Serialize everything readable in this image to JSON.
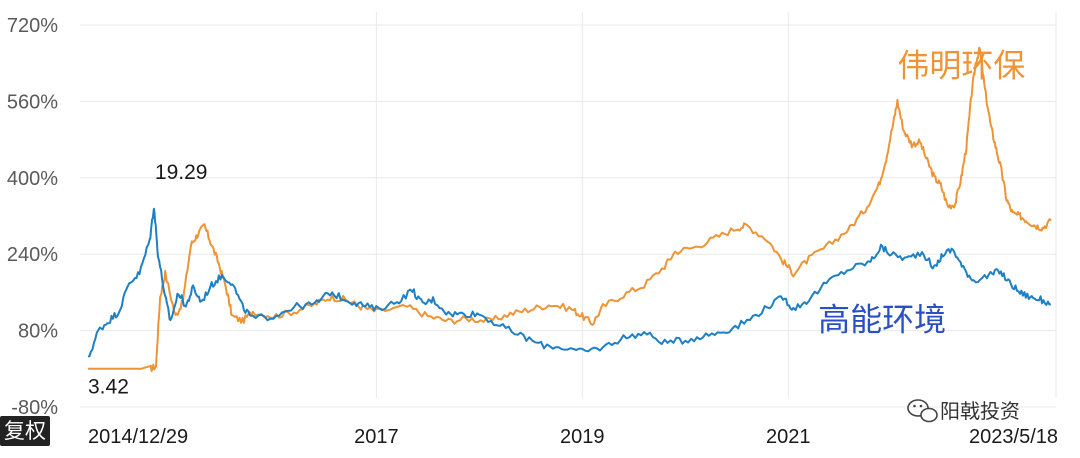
{
  "colors": {
    "weiming": "#ee9435",
    "gaoneng": "#1e80c4",
    "gaoneng_label": "#2a4fc4",
    "grid": "#e8e8e8"
  },
  "corner_label": "复权",
  "watermark_text": "阳戟投资",
  "chart_data": {
    "type": "line",
    "title": "",
    "xlabel": "",
    "ylabel": "",
    "ylim": [
      -80,
      720
    ],
    "xlim": [
      2014.2,
      2023.6
    ],
    "y_ticks": [
      {
        "value": 720,
        "label": "720%"
      },
      {
        "value": 560,
        "label": "560%"
      },
      {
        "value": 400,
        "label": "400%"
      },
      {
        "value": 240,
        "label": "240%"
      },
      {
        "value": 80,
        "label": "80%"
      },
      {
        "value": -80,
        "label": "-80%"
      }
    ],
    "x_ticks": [
      {
        "value": 2014.99,
        "label": "2014/12/29",
        "grid": false
      },
      {
        "value": 2017.0,
        "label": "2017",
        "grid": true
      },
      {
        "value": 2019.0,
        "label": "2019",
        "grid": true
      },
      {
        "value": 2021.0,
        "label": "2021",
        "grid": true
      },
      {
        "value": 2023.38,
        "label": "2023/5/18",
        "grid": false
      }
    ],
    "annotations": [
      {
        "text": "19.29",
        "x": 2014.85,
        "y": 397
      },
      {
        "text": "3.42",
        "x": 2014.2,
        "y": -52
      }
    ],
    "series": [
      {
        "name": "伟明环保",
        "color_key": "weiming",
        "points": [
          [
            2014.2,
            0
          ],
          [
            2014.8,
            0
          ],
          [
            2014.86,
            5
          ],
          [
            2014.9,
            150
          ],
          [
            2014.95,
            200
          ],
          [
            2015.05,
            110
          ],
          [
            2015.12,
            140
          ],
          [
            2015.2,
            260
          ],
          [
            2015.26,
            280
          ],
          [
            2015.33,
            300
          ],
          [
            2015.4,
            260
          ],
          [
            2015.47,
            220
          ],
          [
            2015.54,
            170
          ],
          [
            2015.6,
            110
          ],
          [
            2015.7,
            100
          ],
          [
            2015.8,
            120
          ],
          [
            2016.0,
            110
          ],
          [
            2016.2,
            120
          ],
          [
            2016.4,
            135
          ],
          [
            2016.55,
            150
          ],
          [
            2016.7,
            145
          ],
          [
            2016.85,
            130
          ],
          [
            2017.0,
            120
          ],
          [
            2017.3,
            130
          ],
          [
            2017.5,
            110
          ],
          [
            2017.7,
            100
          ],
          [
            2017.9,
            105
          ],
          [
            2018.1,
            100
          ],
          [
            2018.3,
            115
          ],
          [
            2018.5,
            125
          ],
          [
            2018.7,
            135
          ],
          [
            2018.9,
            125
          ],
          [
            2019.0,
            110
          ],
          [
            2019.1,
            95
          ],
          [
            2019.2,
            130
          ],
          [
            2019.4,
            155
          ],
          [
            2019.6,
            175
          ],
          [
            2019.8,
            215
          ],
          [
            2019.9,
            245
          ],
          [
            2020.1,
            255
          ],
          [
            2020.3,
            275
          ],
          [
            2020.5,
            295
          ],
          [
            2020.6,
            300
          ],
          [
            2020.8,
            270
          ],
          [
            2020.95,
            225
          ],
          [
            2021.05,
            200
          ],
          [
            2021.2,
            230
          ],
          [
            2021.4,
            260
          ],
          [
            2021.6,
            295
          ],
          [
            2021.75,
            335
          ],
          [
            2021.88,
            385
          ],
          [
            2021.95,
            440
          ],
          [
            2022.02,
            515
          ],
          [
            2022.06,
            560
          ],
          [
            2022.12,
            500
          ],
          [
            2022.2,
            470
          ],
          [
            2022.28,
            475
          ],
          [
            2022.35,
            435
          ],
          [
            2022.42,
            400
          ],
          [
            2022.48,
            385
          ],
          [
            2022.55,
            340
          ],
          [
            2022.62,
            345
          ],
          [
            2022.68,
            400
          ],
          [
            2022.73,
            465
          ],
          [
            2022.78,
            575
          ],
          [
            2022.82,
            640
          ],
          [
            2022.86,
            670
          ],
          [
            2022.91,
            585
          ],
          [
            2022.97,
            505
          ],
          [
            2023.02,
            460
          ],
          [
            2023.07,
            415
          ],
          [
            2023.12,
            355
          ],
          [
            2023.18,
            325
          ],
          [
            2023.25,
            320
          ],
          [
            2023.32,
            310
          ],
          [
            2023.4,
            300
          ],
          [
            2023.47,
            295
          ],
          [
            2023.55,
            310
          ]
        ]
      },
      {
        "name": "高能环境",
        "color_key": "gaoneng",
        "label_color_key": "gaoneng_label",
        "points": [
          [
            2014.2,
            20
          ],
          [
            2014.3,
            80
          ],
          [
            2014.4,
            100
          ],
          [
            2014.5,
            120
          ],
          [
            2014.6,
            180
          ],
          [
            2014.7,
            200
          ],
          [
            2014.8,
            270
          ],
          [
            2014.84,
            340
          ],
          [
            2014.88,
            240
          ],
          [
            2014.95,
            150
          ],
          [
            2015.0,
            100
          ],
          [
            2015.08,
            160
          ],
          [
            2015.15,
            130
          ],
          [
            2015.22,
            170
          ],
          [
            2015.3,
            140
          ],
          [
            2015.4,
            175
          ],
          [
            2015.5,
            195
          ],
          [
            2015.6,
            180
          ],
          [
            2015.7,
            130
          ],
          [
            2015.8,
            105
          ],
          [
            2016.0,
            110
          ],
          [
            2016.2,
            130
          ],
          [
            2016.4,
            135
          ],
          [
            2016.55,
            160
          ],
          [
            2016.7,
            145
          ],
          [
            2016.85,
            135
          ],
          [
            2017.0,
            125
          ],
          [
            2017.2,
            140
          ],
          [
            2017.35,
            165
          ],
          [
            2017.45,
            135
          ],
          [
            2017.55,
            145
          ],
          [
            2017.7,
            115
          ],
          [
            2017.85,
            115
          ],
          [
            2018.0,
            115
          ],
          [
            2018.2,
            90
          ],
          [
            2018.4,
            70
          ],
          [
            2018.6,
            50
          ],
          [
            2018.8,
            45
          ],
          [
            2019.0,
            35
          ],
          [
            2019.2,
            45
          ],
          [
            2019.4,
            65
          ],
          [
            2019.6,
            75
          ],
          [
            2019.8,
            55
          ],
          [
            2020.0,
            60
          ],
          [
            2020.2,
            70
          ],
          [
            2020.4,
            80
          ],
          [
            2020.6,
            100
          ],
          [
            2020.8,
            130
          ],
          [
            2020.95,
            150
          ],
          [
            2021.05,
            125
          ],
          [
            2021.2,
            145
          ],
          [
            2021.4,
            185
          ],
          [
            2021.6,
            210
          ],
          [
            2021.8,
            225
          ],
          [
            2021.9,
            255
          ],
          [
            2022.0,
            240
          ],
          [
            2022.15,
            230
          ],
          [
            2022.3,
            245
          ],
          [
            2022.42,
            210
          ],
          [
            2022.5,
            240
          ],
          [
            2022.6,
            250
          ],
          [
            2022.7,
            210
          ],
          [
            2022.8,
            185
          ],
          [
            2022.95,
            195
          ],
          [
            2023.05,
            205
          ],
          [
            2023.15,
            180
          ],
          [
            2023.25,
            160
          ],
          [
            2023.35,
            150
          ],
          [
            2023.45,
            145
          ],
          [
            2023.55,
            135
          ]
        ]
      }
    ],
    "series_labels": [
      {
        "series": "伟明环保",
        "x": 2022.06,
        "y": 612,
        "color_key": "weiming"
      },
      {
        "series": "高能环境",
        "x": 2021.29,
        "y": 80,
        "color_key": "gaoneng_label"
      }
    ]
  }
}
